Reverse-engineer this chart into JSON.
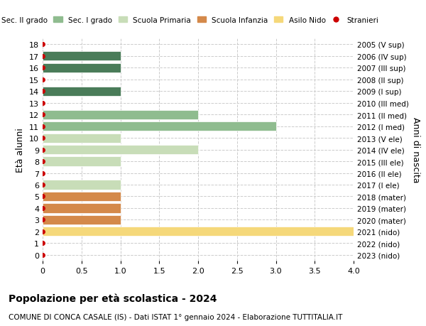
{
  "ages": [
    18,
    17,
    16,
    15,
    14,
    13,
    12,
    11,
    10,
    9,
    8,
    7,
    6,
    5,
    4,
    3,
    2,
    1,
    0
  ],
  "right_labels": [
    "2005 (V sup)",
    "2006 (IV sup)",
    "2007 (III sup)",
    "2008 (II sup)",
    "2009 (I sup)",
    "2010 (III med)",
    "2011 (II med)",
    "2012 (I med)",
    "2013 (V ele)",
    "2014 (IV ele)",
    "2015 (III ele)",
    "2016 (II ele)",
    "2017 (I ele)",
    "2018 (mater)",
    "2019 (mater)",
    "2020 (mater)",
    "2021 (nido)",
    "2022 (nido)",
    "2023 (nido)"
  ],
  "bar_values": [
    0,
    1,
    1,
    0,
    1,
    0,
    2,
    3,
    1,
    2,
    1,
    0,
    1,
    1,
    1,
    1,
    4,
    0,
    0
  ],
  "bar_colors": [
    "#4a7c59",
    "#4a7c59",
    "#4a7c59",
    "#4a7c59",
    "#4a7c59",
    "#8fbc8f",
    "#8fbc8f",
    "#8fbc8f",
    "#c8ddb8",
    "#c8ddb8",
    "#c8ddb8",
    "#c8ddb8",
    "#c8ddb8",
    "#d4894a",
    "#d4894a",
    "#d4894a",
    "#f5d87a",
    "#f5d87a",
    "#f5d87a"
  ],
  "stranieri_ages": [
    18,
    17,
    16,
    15,
    14,
    13,
    12,
    11,
    10,
    9,
    8,
    7,
    6,
    5,
    4,
    3,
    2,
    1,
    0
  ],
  "legend_labels": [
    "Sec. II grado",
    "Sec. I grado",
    "Scuola Primaria",
    "Scuola Infanzia",
    "Asilo Nido",
    "Stranieri"
  ],
  "legend_colors": [
    "#4a7c59",
    "#8fbc8f",
    "#c8ddb8",
    "#d4894a",
    "#f5d87a",
    "#cc0000"
  ],
  "title": "Popolazione per età scolastica - 2024",
  "subtitle": "COMUNE DI CONCA CASALE (IS) - Dati ISTAT 1° gennaio 2024 - Elaborazione TUTTITALIA.IT",
  "xlabel": "",
  "ylabel_left": "Età alunni",
  "ylabel_right": "Anni di nascita",
  "xlim": [
    0,
    4.0
  ],
  "xticks": [
    0,
    0.5,
    1.0,
    1.5,
    2.0,
    2.5,
    3.0,
    3.5,
    4.0
  ],
  "bar_height": 0.8,
  "background_color": "#ffffff",
  "grid_color": "#cccccc"
}
